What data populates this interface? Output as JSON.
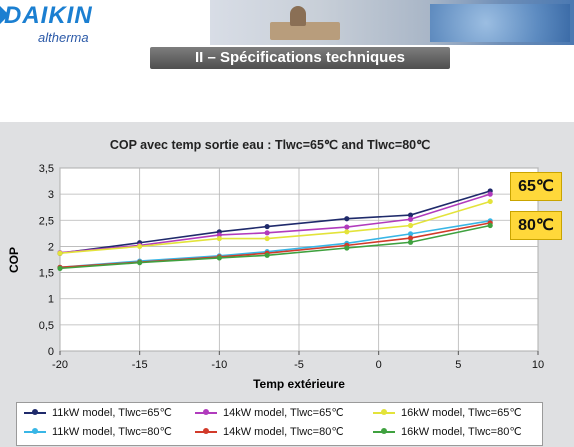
{
  "header": {
    "brand": "DAIKIN",
    "product": "altherma",
    "section_title": "II – Spécifications techniques"
  },
  "badges": {
    "b65": "65℃",
    "b80": "80℃",
    "color": "#ffd83a"
  },
  "chart_data": {
    "type": "line",
    "title": "COP avec temp sortie eau : Tlwc=65℃ and Tlwc=80℃",
    "xlabel": "Temp extérieure",
    "ylabel": "COP",
    "xlim": [
      -20,
      10
    ],
    "ylim": [
      0,
      3.5
    ],
    "xticks": [
      -20,
      -15,
      -10,
      -5,
      0,
      5,
      10
    ],
    "yticks": [
      0,
      0.5,
      1,
      1.5,
      2,
      2.5,
      3,
      3.5
    ],
    "xtick_labels": [
      "-20",
      "-15",
      "-10",
      "-5",
      "0",
      "5",
      "10"
    ],
    "ytick_labels": [
      "0",
      "0,5",
      "1",
      "1,5",
      "2",
      "2,5",
      "3",
      "3,5"
    ],
    "grid": true,
    "legend_position": "bottom",
    "x": [
      -20,
      -15,
      -10,
      -7,
      -2,
      2,
      7
    ],
    "series": [
      {
        "name": "11kW model, Tlwc=65℃",
        "color": "#1f2a6b",
        "values": [
          1.87,
          2.07,
          2.28,
          2.38,
          2.53,
          2.6,
          3.06
        ]
      },
      {
        "name": "14kW model, Tlwc=65℃",
        "color": "#b13bbd",
        "values": [
          1.88,
          2.02,
          2.22,
          2.26,
          2.37,
          2.52,
          3.0
        ]
      },
      {
        "name": "16kW model, Tlwc=65℃",
        "color": "#e3e33a",
        "values": [
          1.87,
          2.0,
          2.15,
          2.15,
          2.28,
          2.4,
          2.86
        ]
      },
      {
        "name": "11kW model, Tlwc=80℃",
        "color": "#38b6e6",
        "values": [
          1.6,
          1.72,
          1.82,
          1.9,
          2.06,
          2.24,
          2.49
        ]
      },
      {
        "name": "14kW model, Tlwc=80℃",
        "color": "#d23a2a",
        "values": [
          1.6,
          1.7,
          1.8,
          1.87,
          2.02,
          2.16,
          2.45
        ]
      },
      {
        "name": "16kW model, Tlwc=80℃",
        "color": "#3fa13f",
        "values": [
          1.58,
          1.69,
          1.78,
          1.83,
          1.97,
          2.08,
          2.4
        ]
      }
    ]
  }
}
